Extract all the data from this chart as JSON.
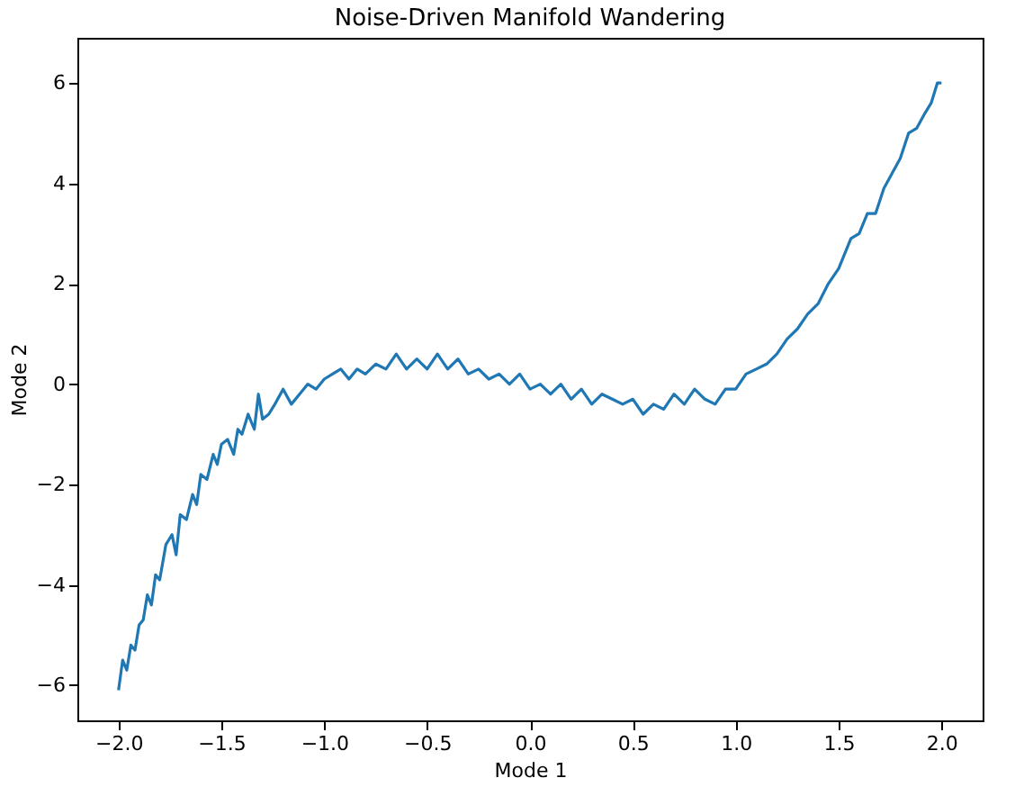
{
  "chart_data": {
    "type": "line",
    "title": "Noise-Driven Manifold Wandering",
    "xlabel": "Mode 1",
    "ylabel": "Mode 2",
    "xlim": [
      -2.2,
      2.2
    ],
    "ylim": [
      -6.7,
      6.9
    ],
    "xticks": [
      {
        "value": -2,
        "label": "−2.0"
      },
      -1.5,
      {
        "value": -1,
        "label": "−1.0"
      },
      -0.5,
      {
        "value": 0,
        "label": "0.0"
      },
      0.5,
      {
        "value": 1,
        "label": "1.0"
      },
      1.5,
      {
        "value": 2,
        "label": "2.0"
      }
    ],
    "yticks": [
      -6,
      -4,
      -2,
      0,
      2,
      4,
      6
    ],
    "grid": false,
    "x": [
      -2.0,
      -1.98,
      -1.96,
      -1.94,
      -1.92,
      -1.9,
      -1.88,
      -1.86,
      -1.84,
      -1.82,
      -1.8,
      -1.77,
      -1.74,
      -1.72,
      -1.7,
      -1.67,
      -1.64,
      -1.62,
      -1.6,
      -1.57,
      -1.54,
      -1.52,
      -1.5,
      -1.47,
      -1.44,
      -1.42,
      -1.4,
      -1.37,
      -1.34,
      -1.32,
      -1.3,
      -1.27,
      -1.24,
      -1.2,
      -1.16,
      -1.12,
      -1.08,
      -1.04,
      -1.0,
      -0.96,
      -0.92,
      -0.88,
      -0.84,
      -0.8,
      -0.75,
      -0.7,
      -0.65,
      -0.6,
      -0.55,
      -0.5,
      -0.45,
      -0.4,
      -0.35,
      -0.3,
      -0.25,
      -0.2,
      -0.15,
      -0.1,
      -0.05,
      0.0,
      0.05,
      0.1,
      0.15,
      0.2,
      0.25,
      0.3,
      0.35,
      0.4,
      0.45,
      0.5,
      0.55,
      0.6,
      0.65,
      0.7,
      0.75,
      0.8,
      0.85,
      0.9,
      0.95,
      1.0,
      1.05,
      1.1,
      1.15,
      1.2,
      1.25,
      1.3,
      1.35,
      1.4,
      1.45,
      1.5,
      1.53,
      1.56,
      1.6,
      1.64,
      1.68,
      1.72,
      1.76,
      1.8,
      1.84,
      1.88,
      1.92,
      1.95,
      1.98,
      2.0
    ],
    "series": [
      {
        "color": "#1f77b4",
        "values": [
          -6.1,
          -5.5,
          -5.7,
          -5.2,
          -5.3,
          -4.8,
          -4.7,
          -4.2,
          -4.4,
          -3.8,
          -3.9,
          -3.2,
          -3.0,
          -3.4,
          -2.6,
          -2.7,
          -2.2,
          -2.4,
          -1.8,
          -1.9,
          -1.4,
          -1.6,
          -1.2,
          -1.1,
          -1.4,
          -0.9,
          -1.0,
          -0.6,
          -0.9,
          -0.2,
          -0.7,
          -0.6,
          -0.4,
          -0.1,
          -0.4,
          -0.2,
          0.0,
          -0.1,
          0.1,
          0.2,
          0.3,
          0.1,
          0.3,
          0.2,
          0.4,
          0.3,
          0.6,
          0.3,
          0.5,
          0.3,
          0.6,
          0.3,
          0.5,
          0.2,
          0.3,
          0.1,
          0.2,
          0.0,
          0.2,
          -0.1,
          0.0,
          -0.2,
          0.0,
          -0.3,
          -0.1,
          -0.4,
          -0.2,
          -0.3,
          -0.4,
          -0.3,
          -0.6,
          -0.4,
          -0.5,
          -0.2,
          -0.4,
          -0.1,
          -0.3,
          -0.4,
          -0.1,
          -0.1,
          0.2,
          0.3,
          0.4,
          0.6,
          0.9,
          1.1,
          1.4,
          1.6,
          2.0,
          2.3,
          2.6,
          2.9,
          3.0,
          3.4,
          3.4,
          3.9,
          4.2,
          4.5,
          5.0,
          5.1,
          5.4,
          5.6,
          6.0,
          6.0
        ]
      }
    ]
  }
}
